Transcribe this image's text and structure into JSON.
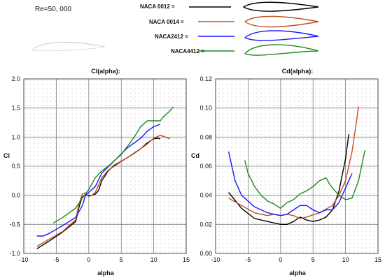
{
  "header": {
    "reynolds_label": "Re=50, 000"
  },
  "legend": {
    "items": [
      {
        "label": "NACA 0012 =",
        "color": "#000000"
      },
      {
        "label": "NACA 0014 =",
        "color": "#c0501f"
      },
      {
        "label": "NACA2412 =",
        "color": "#1a1aff"
      },
      {
        "label": "NACA4412 =",
        "color": "#1f8a1f"
      }
    ]
  },
  "chart_data": [
    {
      "type": "line",
      "title": "Cl(alpha):",
      "xlabel": "alpha",
      "ylabel": "Cl",
      "xlim": [
        -10,
        15
      ],
      "ylim": [
        -1.0,
        2.0
      ],
      "xticks": [
        -10,
        -5,
        0,
        5,
        10,
        15
      ],
      "yticks": [
        -1.0,
        -0.5,
        0.0,
        0.5,
        1.0,
        1.5,
        2.0
      ],
      "yticklabels": [
        "-1.0",
        "-0.5",
        "0.0",
        "0.5",
        "1.0",
        "1.5",
        "2.0"
      ],
      "grid": true,
      "series": [
        {
          "name": "NACA 0012",
          "color": "#000000",
          "points": [
            [
              -8,
              -0.92
            ],
            [
              -6,
              -0.78
            ],
            [
              -4,
              -0.63
            ],
            [
              -2,
              -0.45
            ],
            [
              -1.5,
              -0.2
            ],
            [
              -1,
              -0.03
            ],
            [
              -0.5,
              0.0
            ],
            [
              0,
              0.0
            ],
            [
              0.5,
              0.0
            ],
            [
              1,
              0.02
            ],
            [
              1.5,
              0.08
            ],
            [
              2,
              0.25
            ],
            [
              3,
              0.42
            ],
            [
              4,
              0.52
            ],
            [
              6,
              0.65
            ],
            [
              8,
              0.8
            ],
            [
              9,
              0.9
            ],
            [
              10,
              0.97
            ],
            [
              10.5,
              0.98
            ],
            [
              11,
              0.97
            ]
          ]
        },
        {
          "name": "NACA 0014",
          "color": "#c0501f",
          "points": [
            [
              -8,
              -0.88
            ],
            [
              -6,
              -0.75
            ],
            [
              -4,
              -0.62
            ],
            [
              -2,
              -0.42
            ],
            [
              -1.5,
              -0.15
            ],
            [
              -1,
              0.02
            ],
            [
              -0.5,
              0.04
            ],
            [
              0,
              -0.02
            ],
            [
              0.5,
              0.0
            ],
            [
              1,
              0.05
            ],
            [
              2,
              0.3
            ],
            [
              3,
              0.43
            ],
            [
              5,
              0.58
            ],
            [
              7,
              0.72
            ],
            [
              9,
              0.88
            ],
            [
              10,
              0.98
            ],
            [
              11,
              1.03
            ],
            [
              11.8,
              1.0
            ],
            [
              12.5,
              0.97
            ]
          ]
        },
        {
          "name": "NACA2412",
          "color": "#1a1aff",
          "points": [
            [
              -8,
              -0.7
            ],
            [
              -7,
              -0.7
            ],
            [
              -6,
              -0.65
            ],
            [
              -4,
              -0.52
            ],
            [
              -2,
              -0.38
            ],
            [
              -1,
              -0.18
            ],
            [
              -0.5,
              0.0
            ],
            [
              0,
              0.05
            ],
            [
              0.5,
              0.1
            ],
            [
              1,
              0.15
            ],
            [
              2,
              0.38
            ],
            [
              4,
              0.6
            ],
            [
              6,
              0.82
            ],
            [
              8,
              0.98
            ],
            [
              9,
              1.1
            ],
            [
              10,
              1.18
            ],
            [
              11,
              1.22
            ]
          ]
        },
        {
          "name": "NACA4412",
          "color": "#1f8a1f",
          "points": [
            [
              -5.5,
              -0.48
            ],
            [
              -4,
              -0.38
            ],
            [
              -2,
              -0.22
            ],
            [
              -1,
              -0.05
            ],
            [
              0,
              0.1
            ],
            [
              1,
              0.3
            ],
            [
              2,
              0.42
            ],
            [
              3,
              0.5
            ],
            [
              5,
              0.7
            ],
            [
              7,
              1.0
            ],
            [
              8,
              1.18
            ],
            [
              9,
              1.28
            ],
            [
              10,
              1.28
            ],
            [
              11,
              1.28
            ],
            [
              11.5,
              1.35
            ],
            [
              12,
              1.4
            ],
            [
              12.5,
              1.45
            ],
            [
              13,
              1.52
            ]
          ]
        }
      ]
    },
    {
      "type": "line",
      "title": "Cd(alpha):",
      "xlabel": "alpha",
      "ylabel": "Cd",
      "xlim": [
        -10,
        15
      ],
      "ylim": [
        0.0,
        0.12
      ],
      "xticks": [
        -10,
        -5,
        0,
        5,
        10,
        15
      ],
      "yticks": [
        0.0,
        0.02,
        0.04,
        0.06,
        0.08,
        0.1,
        0.12
      ],
      "yticklabels": [
        "0.00",
        "0.02",
        "0.04",
        "0.06",
        "0.08",
        "0.10",
        "0.12"
      ],
      "grid": true,
      "series": [
        {
          "name": "NACA 0012",
          "color": "#000000",
          "points": [
            [
              -8,
              0.042
            ],
            [
              -6,
              0.031
            ],
            [
              -4,
              0.024
            ],
            [
              -2,
              0.022
            ],
            [
              -1,
              0.021
            ],
            [
              0,
              0.02
            ],
            [
              1,
              0.02
            ],
            [
              2,
              0.022
            ],
            [
              3,
              0.025
            ],
            [
              4,
              0.023
            ],
            [
              5,
              0.022
            ],
            [
              6,
              0.023
            ],
            [
              7,
              0.025
            ],
            [
              8,
              0.03
            ],
            [
              9,
              0.043
            ],
            [
              10,
              0.065
            ],
            [
              10.5,
              0.082
            ]
          ]
        },
        {
          "name": "NACA 0014",
          "color": "#c0501f",
          "points": [
            [
              -8,
              0.038
            ],
            [
              -6,
              0.033
            ],
            [
              -4,
              0.028
            ],
            [
              -2,
              0.026
            ],
            [
              -1,
              0.027
            ],
            [
              0,
              0.026
            ],
            [
              1,
              0.027
            ],
            [
              2,
              0.026
            ],
            [
              3,
              0.024
            ],
            [
              4,
              0.025
            ],
            [
              6,
              0.028
            ],
            [
              8,
              0.033
            ],
            [
              9,
              0.04
            ],
            [
              10,
              0.05
            ],
            [
              11,
              0.07
            ],
            [
              11.5,
              0.085
            ],
            [
              12,
              0.101
            ]
          ]
        },
        {
          "name": "NACA2412",
          "color": "#1a1aff",
          "points": [
            [
              -8,
              0.07
            ],
            [
              -7,
              0.05
            ],
            [
              -6,
              0.04
            ],
            [
              -4,
              0.032
            ],
            [
              -2,
              0.028
            ],
            [
              0,
              0.026
            ],
            [
              1,
              0.027
            ],
            [
              2,
              0.03
            ],
            [
              3,
              0.033
            ],
            [
              4,
              0.033
            ],
            [
              5,
              0.03
            ],
            [
              6,
              0.028
            ],
            [
              7,
              0.03
            ],
            [
              8,
              0.03
            ],
            [
              9,
              0.035
            ],
            [
              10,
              0.045
            ],
            [
              11,
              0.055
            ]
          ]
        },
        {
          "name": "NACA4412",
          "color": "#1f8a1f",
          "points": [
            [
              -5.5,
              0.064
            ],
            [
              -5,
              0.055
            ],
            [
              -4,
              0.046
            ],
            [
              -3,
              0.04
            ],
            [
              -2,
              0.036
            ],
            [
              -1,
              0.034
            ],
            [
              0,
              0.031
            ],
            [
              1,
              0.035
            ],
            [
              2,
              0.037
            ],
            [
              3,
              0.041
            ],
            [
              4,
              0.043
            ],
            [
              5,
              0.046
            ],
            [
              6,
              0.05
            ],
            [
              7,
              0.052
            ],
            [
              7.5,
              0.048
            ],
            [
              8,
              0.045
            ],
            [
              9,
              0.04
            ],
            [
              10,
              0.037
            ],
            [
              11,
              0.038
            ],
            [
              12,
              0.05
            ],
            [
              13,
              0.071
            ]
          ]
        }
      ]
    }
  ]
}
